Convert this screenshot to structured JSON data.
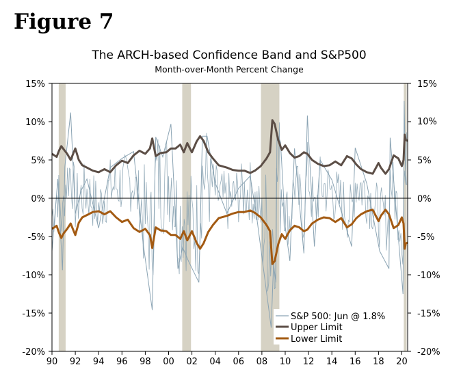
{
  "figure_label": "Figure 7",
  "chart_data": {
    "type": "line",
    "title": "The ARCH-based Confidence Band and S&P500",
    "subtitle": "Month-over-Month Percent Change",
    "xlabel": "",
    "ylabel": "",
    "x_range": [
      1990,
      2020.5
    ],
    "ylim": [
      -20,
      15
    ],
    "y_ticks": [
      15,
      10,
      5,
      0,
      -5,
      -10,
      -15,
      -20
    ],
    "y_tick_labels": [
      "15%",
      "10%",
      "5%",
      "0%",
      "-5%",
      "-10%",
      "-15%",
      "-20%"
    ],
    "y_tick_labels_right": [
      "15%",
      "5%",
      "0%",
      "-5%",
      "-10%",
      "-15%",
      "-20%"
    ],
    "y_tick_values_right": [
      15,
      5,
      0,
      -5,
      -10,
      -15,
      -20
    ],
    "right_label_10": "10%",
    "x_ticks": [
      1990,
      1992,
      1994,
      1996,
      1998,
      2000,
      2002,
      2004,
      2006,
      2008,
      2010,
      2012,
      2014,
      2016,
      2018,
      2020
    ],
    "x_tick_labels": [
      "90",
      "92",
      "94",
      "96",
      "98",
      "00",
      "02",
      "04",
      "06",
      "08",
      "10",
      "12",
      "14",
      "16",
      "18",
      "20"
    ],
    "recessions": [
      [
        1990.58,
        1991.17
      ],
      [
        2001.17,
        2001.92
      ],
      [
        2007.92,
        2009.5
      ],
      [
        2020.17,
        2020.42
      ]
    ],
    "legend": {
      "position": "bottom-right",
      "entries": [
        "S&P 500: Jun @ 1.8%",
        "Upper Limit",
        "Lower Limit"
      ]
    },
    "colors": {
      "sp500": "#8aa3b3",
      "upper": "#5c4e46",
      "lower": "#a35a12",
      "recession": "#d6d2c4",
      "grid": "#000000"
    },
    "series": [
      {
        "name": "Upper Limit",
        "x": [
          1990.0,
          1990.2,
          1990.4,
          1990.6,
          1990.8,
          1991.0,
          1991.3,
          1991.6,
          1992.0,
          1992.3,
          1992.6,
          1993.0,
          1993.5,
          1994.0,
          1994.5,
          1995.0,
          1995.5,
          1996.0,
          1996.5,
          1997.0,
          1997.5,
          1998.0,
          1998.4,
          1998.6,
          1998.9,
          1999.3,
          1999.8,
          2000.2,
          2000.6,
          2001.0,
          2001.3,
          2001.6,
          2002.0,
          2002.4,
          2002.7,
          2003.0,
          2003.4,
          2003.8,
          2004.3,
          2005.0,
          2005.5,
          2006.0,
          2006.5,
          2007.0,
          2007.4,
          2007.9,
          2008.4,
          2008.7,
          2008.9,
          2009.1,
          2009.4,
          2009.7,
          2010.0,
          2010.4,
          2010.8,
          2011.2,
          2011.6,
          2011.9,
          2012.3,
          2012.8,
          2013.3,
          2013.8,
          2014.3,
          2014.8,
          2015.3,
          2015.7,
          2016.1,
          2016.5,
          2017.0,
          2017.5,
          2018.0,
          2018.2,
          2018.6,
          2018.9,
          2019.3,
          2019.7,
          2020.0,
          2020.15,
          2020.25,
          2020.35,
          2020.5
        ],
        "values": [
          5.8,
          5.6,
          5.4,
          6.2,
          6.8,
          6.4,
          5.8,
          5.0,
          6.5,
          5.0,
          4.3,
          4.0,
          3.6,
          3.4,
          3.8,
          3.4,
          4.3,
          4.9,
          4.6,
          5.6,
          6.2,
          5.8,
          6.5,
          7.8,
          5.5,
          5.9,
          6.0,
          6.5,
          6.5,
          7.0,
          6.0,
          7.2,
          6.0,
          7.4,
          8.1,
          7.5,
          6.0,
          5.2,
          4.3,
          4.0,
          3.7,
          3.6,
          3.6,
          3.3,
          3.6,
          4.2,
          5.2,
          6.0,
          10.2,
          9.7,
          7.6,
          6.3,
          6.9,
          5.9,
          5.3,
          5.5,
          6.0,
          5.8,
          5.0,
          4.5,
          4.2,
          4.3,
          4.8,
          4.3,
          5.5,
          5.2,
          4.4,
          3.8,
          3.4,
          3.2,
          4.6,
          4.0,
          3.2,
          3.8,
          5.6,
          5.2,
          4.2,
          5.0,
          8.3,
          7.6,
          7.5
        ]
      },
      {
        "name": "Lower Limit",
        "x": [
          1990.0,
          1990.2,
          1990.4,
          1990.6,
          1990.8,
          1991.0,
          1991.3,
          1991.6,
          1992.0,
          1992.3,
          1992.6,
          1993.0,
          1993.5,
          1994.0,
          1994.5,
          1995.0,
          1995.5,
          1996.0,
          1996.5,
          1997.0,
          1997.5,
          1998.0,
          1998.4,
          1998.6,
          1998.9,
          1999.3,
          1999.8,
          2000.2,
          2000.6,
          2001.0,
          2001.3,
          2001.6,
          2002.0,
          2002.4,
          2002.7,
          2003.0,
          2003.4,
          2003.8,
          2004.3,
          2005.0,
          2005.5,
          2006.0,
          2006.5,
          2007.0,
          2007.4,
          2007.9,
          2008.4,
          2008.7,
          2008.9,
          2009.1,
          2009.4,
          2009.7,
          2010.0,
          2010.4,
          2010.8,
          2011.2,
          2011.6,
          2011.9,
          2012.3,
          2012.8,
          2013.3,
          2013.8,
          2014.3,
          2014.8,
          2015.3,
          2015.7,
          2016.1,
          2016.5,
          2017.0,
          2017.5,
          2018.0,
          2018.2,
          2018.6,
          2018.9,
          2019.3,
          2019.7,
          2020.0,
          2020.15,
          2020.25,
          2020.35,
          2020.5
        ],
        "values": [
          -4.0,
          -3.8,
          -3.6,
          -4.5,
          -5.2,
          -4.6,
          -4.0,
          -3.3,
          -4.8,
          -3.2,
          -2.5,
          -2.2,
          -1.8,
          -1.7,
          -2.1,
          -1.7,
          -2.5,
          -3.1,
          -2.8,
          -3.9,
          -4.4,
          -4.0,
          -4.8,
          -6.5,
          -3.8,
          -4.2,
          -4.3,
          -4.8,
          -4.8,
          -5.3,
          -4.3,
          -5.5,
          -4.3,
          -5.8,
          -6.6,
          -5.9,
          -4.4,
          -3.5,
          -2.6,
          -2.3,
          -2.0,
          -1.8,
          -1.8,
          -1.6,
          -1.9,
          -2.5,
          -3.5,
          -4.3,
          -8.6,
          -8.2,
          -6.0,
          -4.7,
          -5.3,
          -4.2,
          -3.6,
          -3.8,
          -4.3,
          -4.1,
          -3.3,
          -2.8,
          -2.5,
          -2.6,
          -3.1,
          -2.6,
          -3.8,
          -3.4,
          -2.6,
          -2.1,
          -1.7,
          -1.5,
          -3.0,
          -2.3,
          -1.5,
          -2.1,
          -3.9,
          -3.5,
          -2.5,
          -3.3,
          -6.6,
          -5.9,
          -5.8
        ]
      },
      {
        "name": "S&P 500",
        "x": [
          1990.0,
          1990.5,
          1990.9,
          1991.1,
          1991.6,
          1992.0,
          1992.5,
          1993.0,
          1994.0,
          1995.0,
          1996.0,
          1997.0,
          1997.8,
          1998.6,
          1998.9,
          1999.5,
          2000.2,
          2000.8,
          2001.2,
          2001.7,
          2002.6,
          2002.9,
          2003.3,
          2004.0,
          2005.0,
          2006.0,
          2007.0,
          2007.6,
          2008.8,
          2009.0,
          2009.2,
          2009.3,
          2009.6,
          2010.0,
          2010.4,
          2010.8,
          2011.6,
          2011.9,
          2012.5,
          2013.0,
          2014.0,
          2015.7,
          2016.0,
          2017.0,
          2018.1,
          2018.9,
          2019.0,
          2020.1,
          2020.2,
          2020.3,
          2020.4,
          2020.45
        ],
        "values": [
          -6.9,
          2.5,
          -9.4,
          4.1,
          11.2,
          -2.0,
          1.0,
          2.5,
          -3.9,
          4.0,
          5.2,
          6.1,
          -5.7,
          -14.6,
          8.0,
          5.4,
          9.7,
          -9.2,
          -6.4,
          -8.2,
          -11.0,
          8.1,
          8.1,
          2.0,
          -2.0,
          1.3,
          2.9,
          -3.0,
          -16.9,
          -8.6,
          -11.0,
          8.5,
          7.3,
          -3.7,
          -8.2,
          6.5,
          -7.2,
          10.8,
          -6.3,
          5.0,
          2.4,
          -6.3,
          6.6,
          1.9,
          -6.9,
          -9.2,
          7.9,
          -12.5,
          12.7,
          4.5,
          1.8,
          1.8
        ]
      }
    ]
  }
}
